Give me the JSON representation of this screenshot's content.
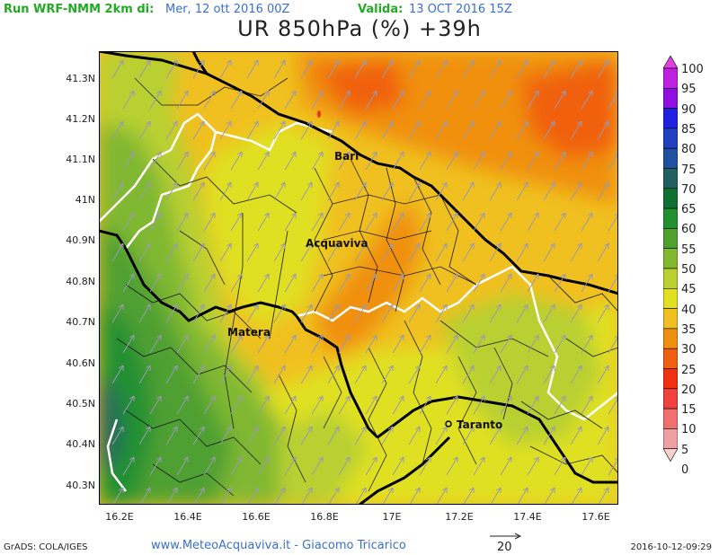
{
  "header": {
    "run_label": "Run WRF-NMM 2km di:",
    "run_date": "Mer, 12 ott 2016 00Z",
    "valid_label": "Valida:",
    "valid_date": "13 OCT 2016 15Z",
    "title": "UR 850hPa (%) +39h"
  },
  "axes": {
    "y_labels": [
      "41.3N",
      "41.2N",
      "41.1N",
      "41N",
      "40.9N",
      "40.8N",
      "40.7N",
      "40.6N",
      "40.5N",
      "40.4N",
      "40.3N"
    ],
    "x_labels": [
      "16.2E",
      "16.4E",
      "16.6E",
      "16.8E",
      "17E",
      "17.2E",
      "17.4E",
      "17.6E"
    ]
  },
  "cities": {
    "bari": "Bari",
    "acquaviva": "Acquaviva",
    "matera": "Matera",
    "taranto": "Taranto"
  },
  "legend": {
    "labels": [
      "100",
      "95",
      "90",
      "85",
      "80",
      "75",
      "70",
      "65",
      "60",
      "55",
      "50",
      "45",
      "40",
      "35",
      "30",
      "25",
      "20",
      "15",
      "10",
      "5",
      "0"
    ],
    "colors": [
      "#e040e0",
      "#c020e0",
      "#9010e0",
      "#2020e0",
      "#2040c0",
      "#2050a0",
      "#206060",
      "#107030",
      "#209030",
      "#50a030",
      "#80b830",
      "#b8d030",
      "#e0e020",
      "#f0c020",
      "#f09010",
      "#f06010",
      "#f03010",
      "#f04040",
      "#f07070",
      "#f0a0a0",
      "#f8d0d0"
    ]
  },
  "vector_scale": "20",
  "footer": {
    "left": "GrADS: COLA/IGES",
    "center": "www.MeteoAcquaviva.it  -  Giacomo Tricarico",
    "right": "2016-10-12-09:29"
  }
}
